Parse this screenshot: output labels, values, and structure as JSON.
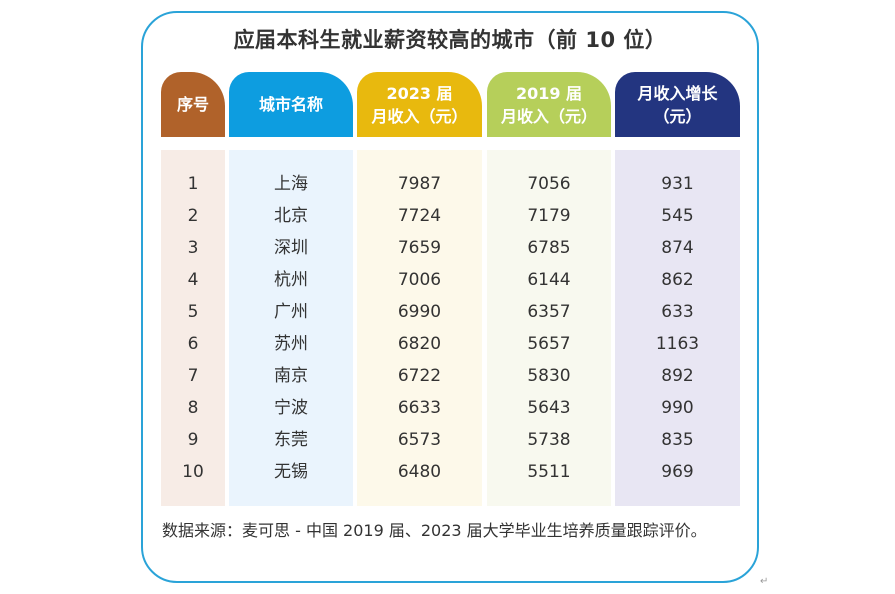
{
  "title": "应届本科生就业薪资较高的城市（前 10 位）",
  "colors": {
    "frame": "#2aa3d8",
    "header_index": "#b0622a",
    "header_city": "#0d9de0",
    "header_2023": "#e8b90e",
    "header_2019": "#b6cf5a",
    "header_growth": "#233580",
    "body_index": "#f7ece6",
    "body_city": "#eaf4fd",
    "body_2023": "#fdf9ea",
    "body_2019": "#f8f9ef",
    "body_growth": "#e8e6f3"
  },
  "headers": {
    "index": {
      "line1": "序号",
      "line2": ""
    },
    "city": {
      "line1": "城市名称",
      "line2": ""
    },
    "income_2023": {
      "line1": "2023 届",
      "line2": "月收入（元）"
    },
    "income_2019": {
      "line1": "2019 届",
      "line2": "月收入（元）"
    },
    "growth": {
      "line1": "月收入增长",
      "line2": "（元）"
    }
  },
  "rows": [
    {
      "index": "1",
      "city": "上海",
      "income_2023": "7987",
      "income_2019": "7056",
      "growth": "931"
    },
    {
      "index": "2",
      "city": "北京",
      "income_2023": "7724",
      "income_2019": "7179",
      "growth": "545"
    },
    {
      "index": "3",
      "city": "深圳",
      "income_2023": "7659",
      "income_2019": "6785",
      "growth": "874"
    },
    {
      "index": "4",
      "city": "杭州",
      "income_2023": "7006",
      "income_2019": "6144",
      "growth": "862"
    },
    {
      "index": "5",
      "city": "广州",
      "income_2023": "6990",
      "income_2019": "6357",
      "growth": "633"
    },
    {
      "index": "6",
      "city": "苏州",
      "income_2023": "6820",
      "income_2019": "5657",
      "growth": "1163"
    },
    {
      "index": "7",
      "city": "南京",
      "income_2023": "6722",
      "income_2019": "5830",
      "growth": "892"
    },
    {
      "index": "8",
      "city": "宁波",
      "income_2023": "6633",
      "income_2019": "5643",
      "growth": "990"
    },
    {
      "index": "9",
      "city": "东莞",
      "income_2023": "6573",
      "income_2019": "5738",
      "growth": "835"
    },
    {
      "index": "10",
      "city": "无锡",
      "income_2023": "6480",
      "income_2019": "5511",
      "growth": "969"
    }
  ],
  "source": "数据来源：麦可思 - 中国 2019 届、2023 届大学毕业生培养质量跟踪评价。",
  "return_mark": "↵"
}
